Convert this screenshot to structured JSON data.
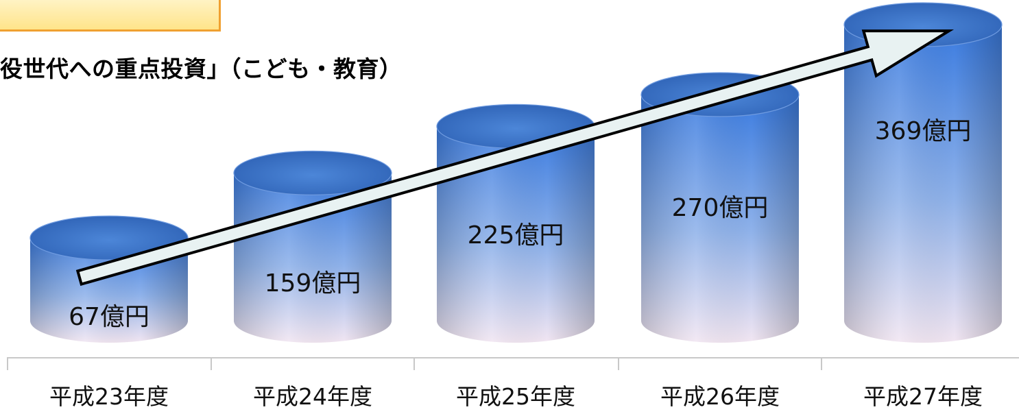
{
  "subtitle": "役世代への重点投資」（こども・教育）",
  "colors": {
    "cyl_top": "#2f63b6",
    "cyl_side_top": "#3a7be0",
    "cyl_side_bottom": "#f2e6f2",
    "arrow_fill": "#e8f2f2",
    "tab_border": "#f0a030"
  },
  "chart_data": {
    "type": "bar",
    "style": "3d-cylinder",
    "categories": [
      "平成23年度",
      "平成24年度",
      "平成25年度",
      "平成26年度",
      "平成27年度"
    ],
    "values": [
      67,
      159,
      225,
      270,
      369
    ],
    "value_labels": [
      "67億円",
      "159億円",
      "225億円",
      "270億円",
      "369億円"
    ],
    "unit": "億円",
    "ylim": [
      0,
      369
    ],
    "grid": false,
    "annotation": "upward trend arrow from 平成23年度 to 平成27年度"
  }
}
